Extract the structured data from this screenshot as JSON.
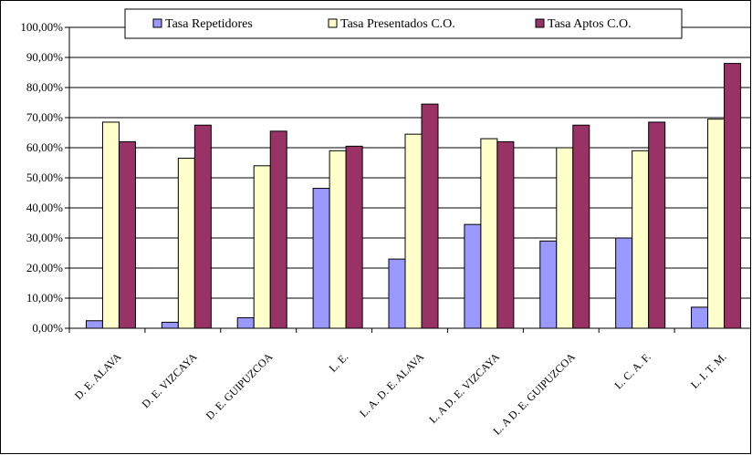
{
  "chart_data": {
    "type": "bar",
    "categories": [
      "D. E. ALAVA",
      "D. E. VIZCAYA",
      "D. E. GUIPUZCOA",
      "L. E.",
      "L. A. D. E. ALAVA",
      "L. A D. E. VIZCAYA",
      "L. A D. E. GUIPUZCOA",
      "L. C. A. F.",
      "L. I. T. M."
    ],
    "series": [
      {
        "name": "Tasa Repetidores",
        "color": "#9999FF",
        "values": [
          2.5,
          2.0,
          3.5,
          46.5,
          23.0,
          34.5,
          29.0,
          30.0,
          7.0
        ]
      },
      {
        "name": "Tasa Presentados C.O.",
        "color": "#FFFFCC",
        "values": [
          68.5,
          56.5,
          54.0,
          59.0,
          64.5,
          63.0,
          60.0,
          59.0,
          69.5
        ]
      },
      {
        "name": "Tasa Aptos C.O.",
        "color": "#993366",
        "values": [
          62.0,
          67.5,
          65.5,
          60.5,
          74.5,
          62.0,
          67.5,
          68.5,
          88.0
        ]
      }
    ],
    "ylim": [
      0,
      100
    ],
    "yticks": [
      0,
      10,
      20,
      30,
      40,
      50,
      60,
      70,
      80,
      90,
      100
    ],
    "ytick_labels": [
      "0,00%",
      "10,00%",
      "20,00%",
      "30,00%",
      "40,00%",
      "50,00%",
      "60,00%",
      "70,00%",
      "80,00%",
      "90,00%",
      "100,00%"
    ],
    "grid": true,
    "legend_position": "top"
  }
}
